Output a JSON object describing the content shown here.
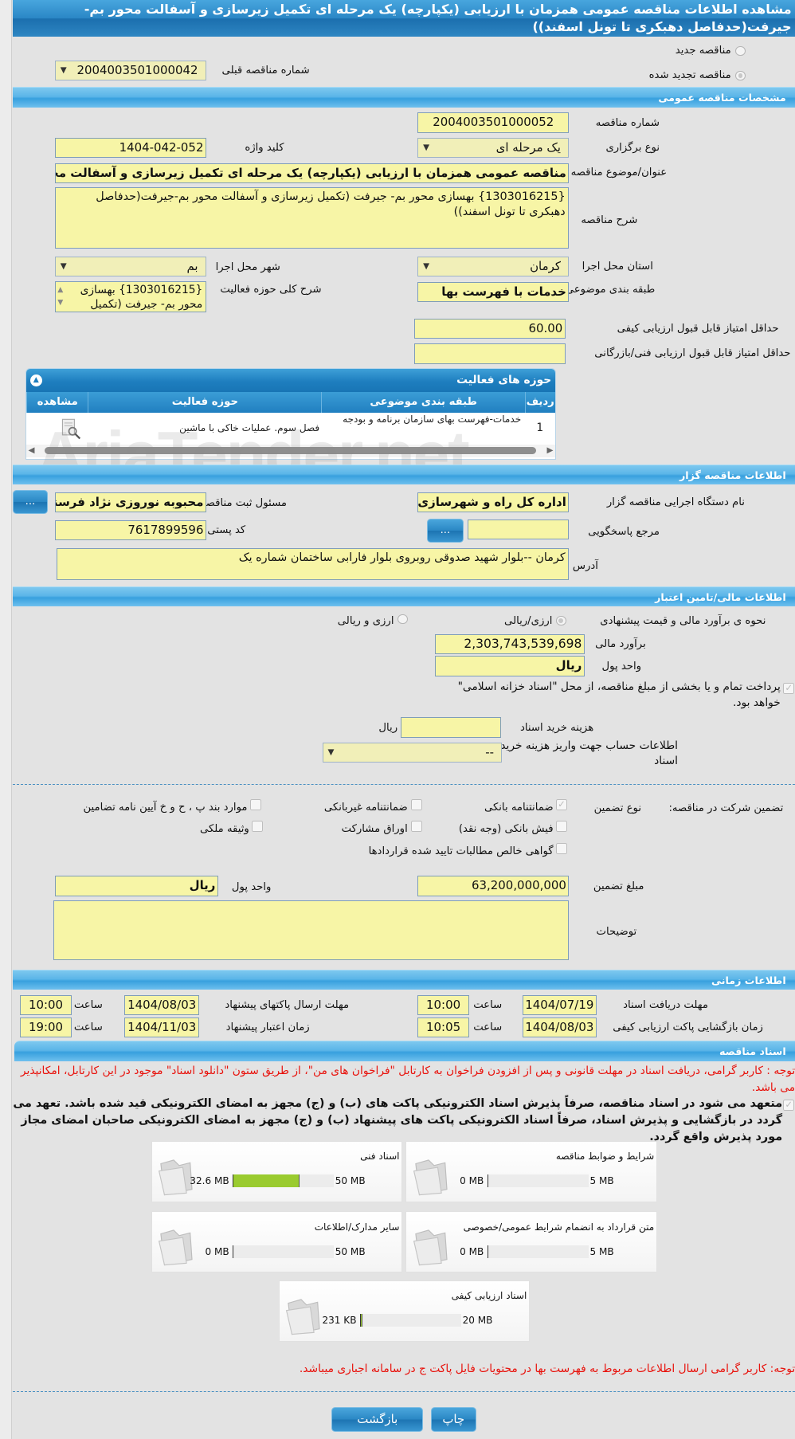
{
  "title": "مشاهده اطلاعات مناقصه عمومی همزمان با ارزیابی (یکپارچه) یک مرحله ای تکمیل زیرسازی و آسفالت محور بم-جیرفت(حدفاصل دهبکری تا تونل اسفند))",
  "tender_type": {
    "new_label": "مناقصه جدید",
    "renewed_label": "مناقصه تجدید شده",
    "selected": "renewed",
    "previous_number_label": "شماره مناقصه قبلی",
    "previous_number": "2004003501000042"
  },
  "general": {
    "header": "مشخصات مناقصه عمومی",
    "number_label": "شماره مناقصه",
    "number": "2004003501000052",
    "holding_type_label": "نوع برگزاری",
    "holding_type": "یک مرحله ای",
    "keyword_label": "کلید واژه",
    "keyword": "1404-042-052",
    "subject_label": "عنوان/موضوع مناقصه",
    "subject": "مناقصه عمومی همزمان با ارزیابی (یکپارچه) یک مرحله ای تکمیل زیرسازی و آسفالت محور بم-جیرفت(حدفاصل دهبکری تا تونل اسفند))",
    "description_label": "شرح مناقصه",
    "description": "{1303016215} بهسازی محور بم- جیرفت (تکمیل زیرسازی و آسفالت محور بم-جیرفت(حدفاصل دهبکری تا تونل اسفند))",
    "province_label": "استان محل اجرا",
    "province": "کرمان",
    "city_label": "شهر محل اجرا",
    "city": "بم",
    "category_label": "طبقه بندی موضوعی",
    "category": "خدمات با فهرست بها",
    "activity_desc_label": "شرح کلی حوزه فعالیت",
    "activity_desc": "{1303016215} بهسازی محور بم- جیرفت (تکمیل",
    "min_quality_label": "حداقل امتیاز قابل قبول ارزیابی کیفی",
    "min_quality": "60.00",
    "min_technical_label": "حداقل امتیاز قابل قبول ارزیابی فنی/بازرگانی",
    "min_technical": ""
  },
  "activity_grid": {
    "title": "حوزه های فعالیت",
    "columns": [
      "ردیف",
      "طبقه بندی موضوعی",
      "حوزه فعالیت",
      "مشاهده"
    ],
    "rows": [
      {
        "row": "1",
        "category": "خدمات-فهرست بهای سازمان برنامه و بودجه",
        "field": "فصل سوم. عملیات خاکی با ماشین"
      }
    ]
  },
  "watermark": "AriaTender.net",
  "organizer": {
    "header": "اطلاعات مناقصه گزار",
    "org_label": "نام دستگاه اجرایی مناقصه گزار",
    "org": "اداره کل راه و شهرسازی اس",
    "registrar_label": "مسئول ثبت مناقصه",
    "registrar": "محبوبه نوروزی نژاد فرسنگی",
    "reference_label": "مرجع پاسخگویی",
    "reference": "",
    "postal_label": "کد پستی",
    "postal": "7617899596",
    "address_label": "آدرس",
    "address": "کرمان --بلوار شهید صدوقی روبروی بلوار فارابی ساختمان شماره یک",
    "browse_label": "..."
  },
  "financial": {
    "header": "اطلاعات مالی/تامین اعتبار",
    "method_label": "نحوه ی برآورد مالی و قیمت پیشنهادی",
    "opt_rial": "ارزی/ریالی",
    "opt_both": "ارزی و ریالی",
    "selected": "ارزی/ریالی",
    "estimate_label": "برآورد مالی",
    "estimate": "2,303,743,539,698",
    "currency_label": "واحد پول",
    "currency": "ریال",
    "treasury_text": "پرداخت تمام و یا بخشی از مبلغ مناقصه، از محل \"اسناد خزانه اسلامی\" خواهد بود.",
    "treasury_checked": true,
    "doc_cost_label": "هزینه خرید اسناد",
    "doc_cost": "",
    "doc_cost_unit": "ریال",
    "account_label": "اطلاعات حساب جهت واریز هزینه خرید اسناد",
    "account": "--"
  },
  "guarantee": {
    "label": "تضمین شرکت در مناقصه:",
    "type_label": "نوع تضمین",
    "options": [
      {
        "label": "ضمانتنامه بانکی",
        "checked": true
      },
      {
        "label": "ضمانتنامه غیربانکی",
        "checked": false
      },
      {
        "label": "موارد بند پ ، ح و خ آیین نامه تضامین",
        "checked": false
      },
      {
        "label": "فیش بانکی (وجه نقد)",
        "checked": false
      },
      {
        "label": "اوراق مشارکت",
        "checked": false
      },
      {
        "label": "وثیقه ملکی",
        "checked": false
      },
      {
        "label": "گواهی خالص مطالبات تایید شده قراردادها",
        "checked": false
      }
    ],
    "amount_label": "مبلغ تضمین",
    "amount": "63,200,000,000",
    "currency_label": "واحد پول",
    "currency": "ریال",
    "notes_label": "توضیحات",
    "notes": ""
  },
  "timing": {
    "header": "اطلاعات زمانی",
    "time_label": "ساعت",
    "doc_deadline_label": "مهلت دریافت اسناد",
    "doc_deadline_date": "1404/07/19",
    "doc_deadline_time": "10:00",
    "submit_deadline_label": "مهلت ارسال پاکتهای پیشنهاد",
    "submit_deadline_date": "1404/08/03",
    "submit_deadline_time": "10:00",
    "opening_label": "زمان بازگشایی پاکت ارزیابی کیفی",
    "opening_date": "1404/08/03",
    "opening_time": "10:05",
    "validity_label": "زمان اعتبار پیشنهاد",
    "validity_date": "1404/11/03",
    "validity_time": "19:00"
  },
  "documents": {
    "header": "اسناد مناقصه",
    "notice": "توجه : کاربر گرامی، دریافت اسناد در مهلت قانونی و پس از افزودن فراخوان به کارتابل \"فراخوان های من\"، از طریق ستون \"دانلود اسناد\" موجود در این کارتابل، امکانپذیر می باشد.",
    "commitment": "متعهد می شود در اسناد مناقصه، صرفاً پذیرش اسناد الکترونیکی پاکت های (ب) و (ج) مجهز به امضای الکترونیکی قید شده باشد. تعهد می گردد در بازگشایی و پذیرش اسناد، صرفاً اسناد الکترونیکی پاکت های پیشنهاد (ب) و (ج) مجهز به امضای الکترونیکی صاحبان امضای مجاز مورد پذیرش واقع گردد.",
    "files": [
      {
        "title": "شرایط و ضوابط مناقصه",
        "size": "0 MB",
        "max": "5 MB",
        "fraction": 0
      },
      {
        "title": "اسناد فنی",
        "size": "32.6 MB",
        "max": "50 MB",
        "fraction": 0.652
      },
      {
        "title": "متن قرارداد به انضمام شرایط عمومی/خصوصی",
        "size": "0 MB",
        "max": "5 MB",
        "fraction": 0
      },
      {
        "title": "سایر مدارک/اطلاعات",
        "size": "0 MB",
        "max": "50 MB",
        "fraction": 0
      },
      {
        "title": "اسناد ارزیابی کیفی",
        "size": "231 KB",
        "max": "20 MB",
        "fraction": 0.011
      }
    ],
    "notice2": "توجه: کاربر گرامی ارسال اطلاعات مربوط به فهرست بها در محتویات فایل پاکت ج در سامانه اجباری میباشد."
  },
  "actions": {
    "back": "بازگشت",
    "print": "چاپ"
  },
  "colors": {
    "header_blue": "#37a0de",
    "field_yellow": "#f7f5a6",
    "notice_red": "#e8120c",
    "progress_green": "#9acb2f"
  }
}
